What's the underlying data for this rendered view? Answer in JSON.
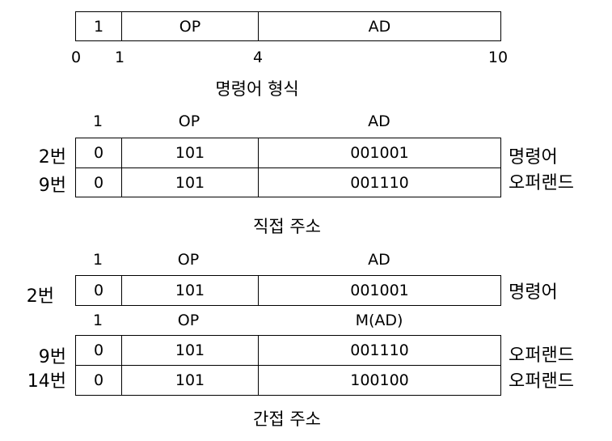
{
  "format": {
    "fields": [
      "1",
      "OP",
      "AD"
    ],
    "bit_positions": [
      "0",
      "1",
      "4",
      "10"
    ],
    "caption": "명령어 형식"
  },
  "direct": {
    "headers": [
      "1",
      "OP",
      "AD"
    ],
    "rows": [
      {
        "addr": "2번",
        "cells": [
          "0",
          "101",
          "001001"
        ],
        "role": "명령어"
      },
      {
        "addr": "9번",
        "cells": [
          "0",
          "101",
          "001110"
        ],
        "role": "오퍼랜드"
      }
    ],
    "caption": "직접 주소"
  },
  "indirect": {
    "headers1": [
      "1",
      "OP",
      "AD"
    ],
    "row1": {
      "addr": "2번",
      "cells": [
        "0",
        "101",
        "001001"
      ],
      "role": "명령어"
    },
    "headers2": [
      "1",
      "OP",
      "M(AD)"
    ],
    "rows": [
      {
        "addr": "9번",
        "cells": [
          "0",
          "101",
          "001110"
        ],
        "role": "오퍼랜드"
      },
      {
        "addr": "14번",
        "cells": [
          "0",
          "101",
          "100100"
        ],
        "role": "오퍼랜드"
      }
    ],
    "caption": "간접 주소"
  }
}
